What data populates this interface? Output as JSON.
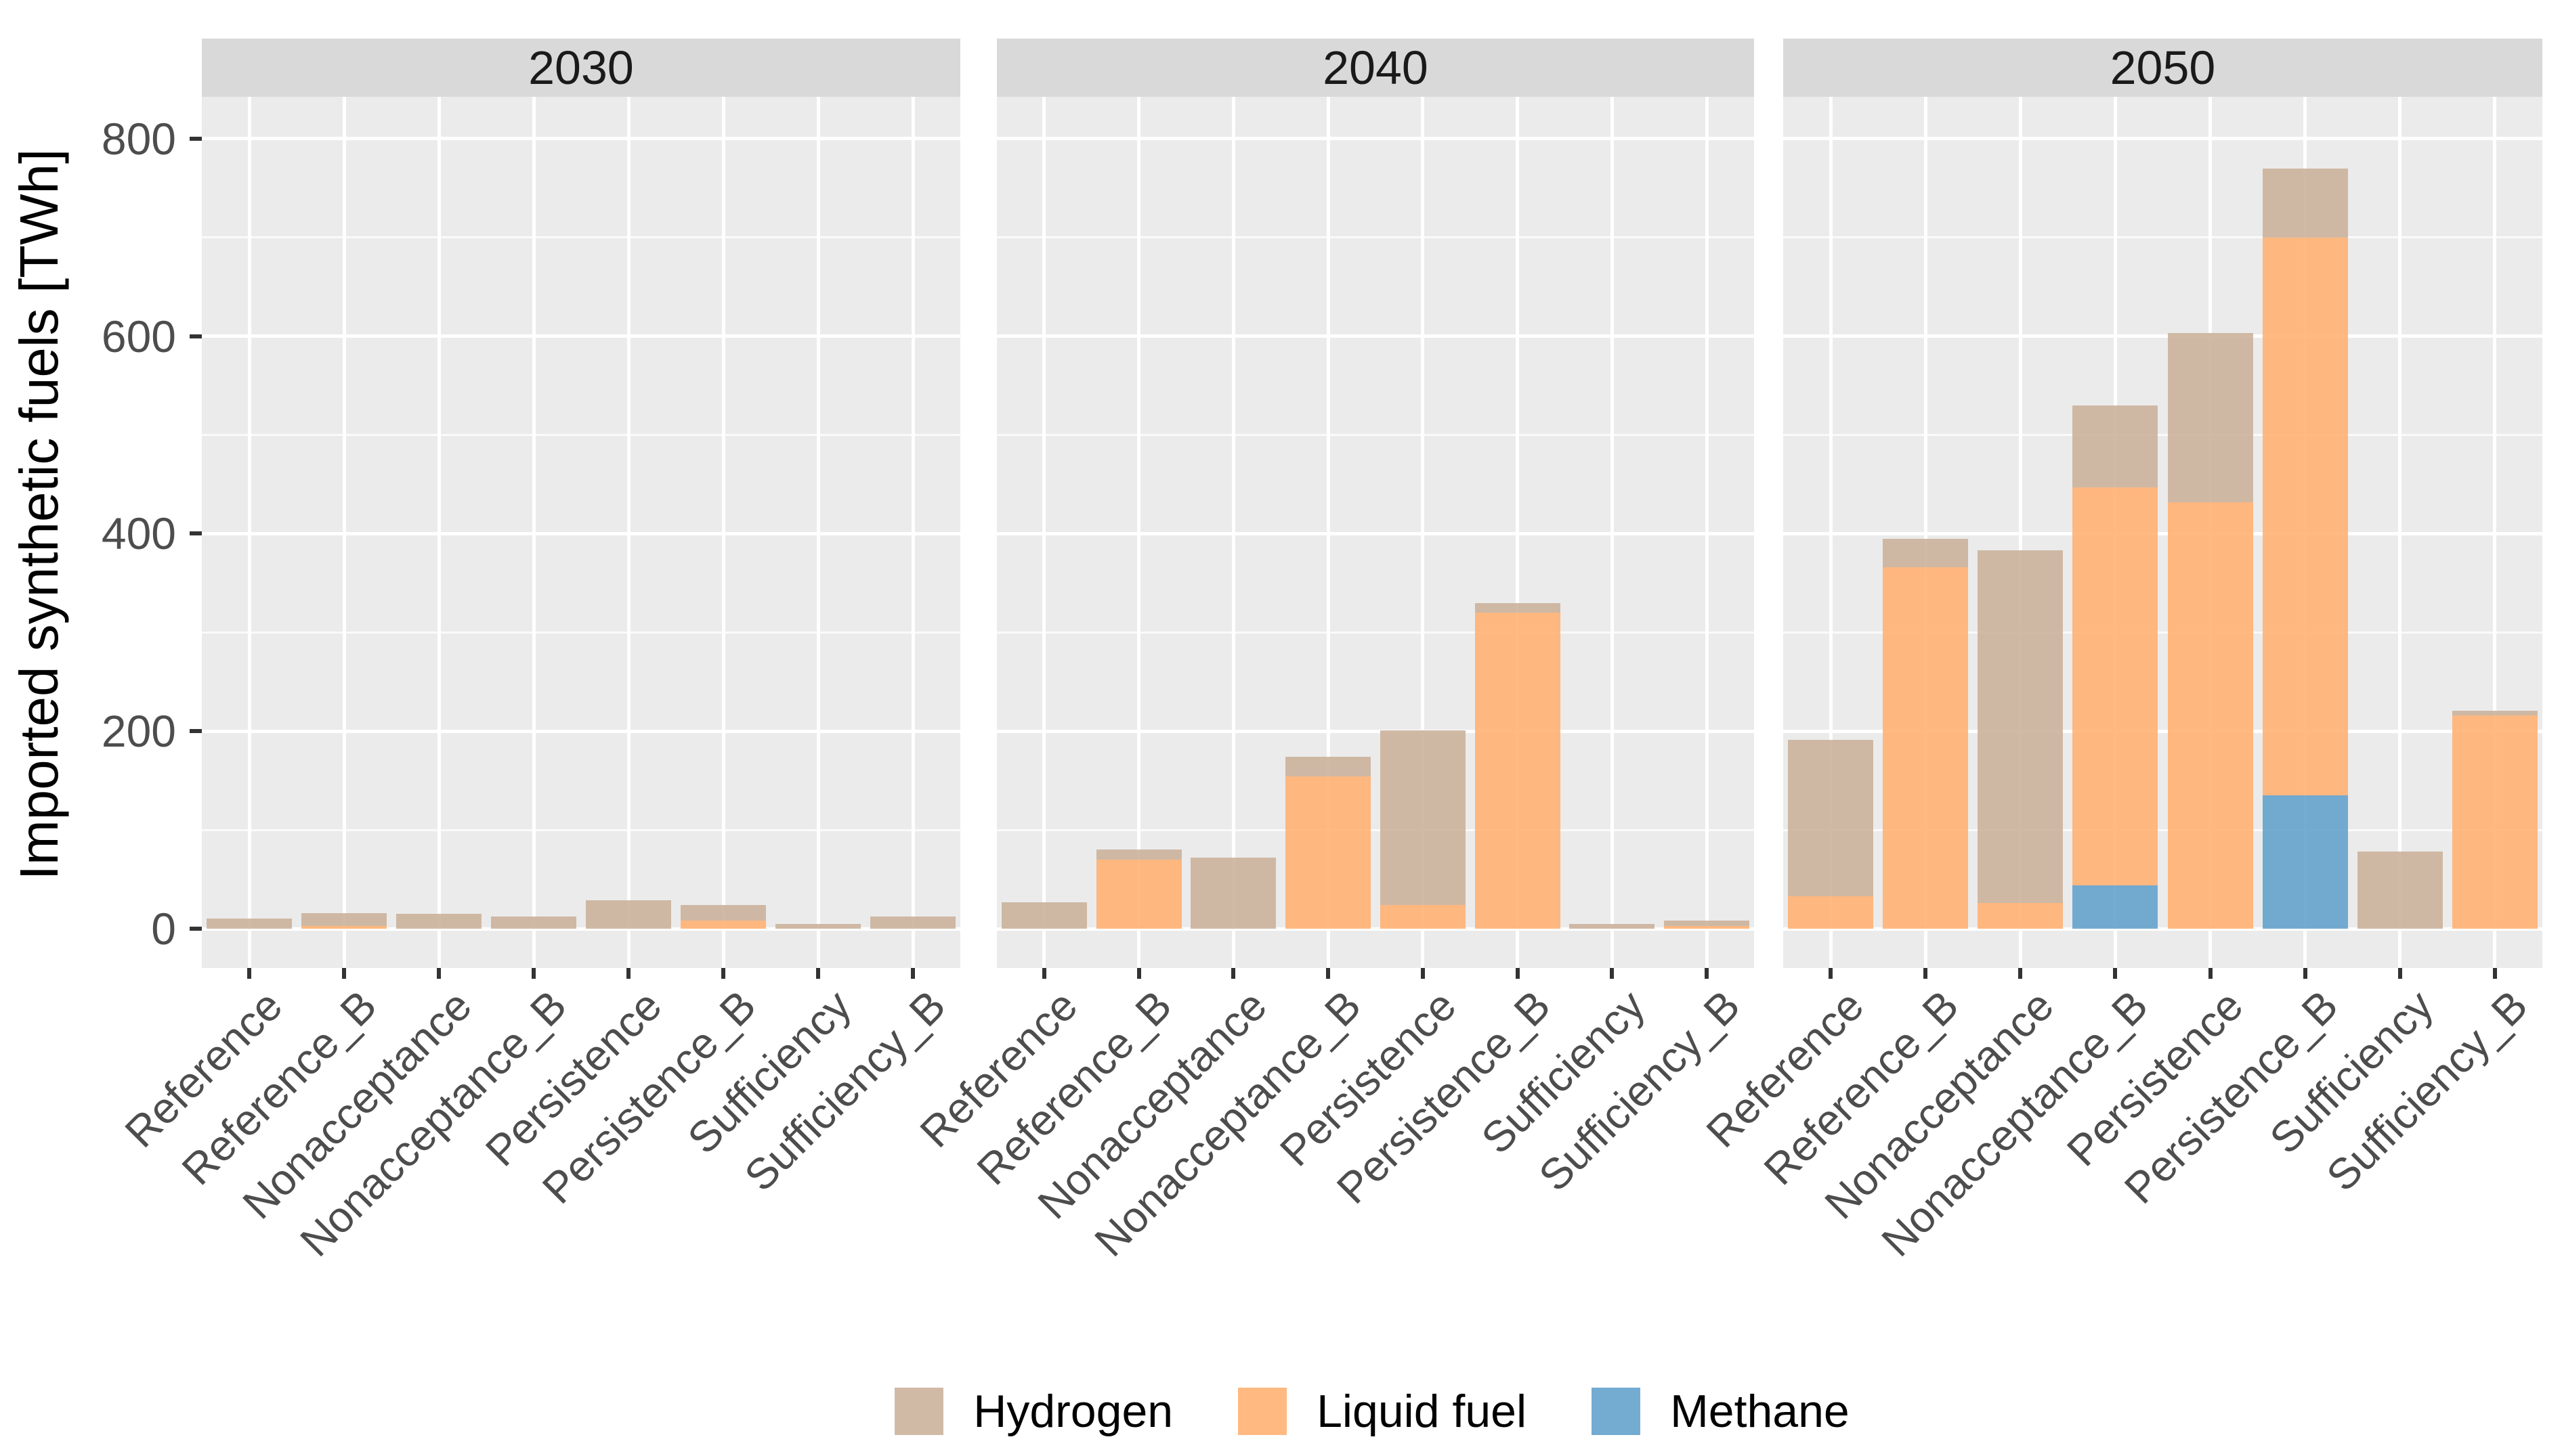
{
  "chart_data": {
    "type": "bar",
    "stacked": true,
    "ylabel": "Imported synthetic fuels [TWh]",
    "ylim": [
      0,
      800
    ],
    "yticks": [
      "0",
      "200",
      "400",
      "600",
      "800"
    ],
    "grid": "on",
    "legend_position": "bottom",
    "categories": [
      "Reference",
      "Reference_B",
      "Nonacceptance",
      "Nonacceptance_B",
      "Persistence",
      "Persistence_B",
      "Sufficiency",
      "Sufficiency_B"
    ],
    "stack_order": [
      "Methane",
      "Liquid fuel",
      "Hydrogen"
    ],
    "facets": [
      {
        "label": "2030",
        "series": [
          {
            "name": "Hydrogen",
            "values": [
              10,
              13,
              15,
              12,
              29,
              16,
              5,
              12
            ]
          },
          {
            "name": "Liquid fuel",
            "values": [
              0,
              3,
              0,
              0,
              0,
              8,
              0,
              0
            ]
          },
          {
            "name": "Methane",
            "values": [
              0,
              0,
              0,
              0,
              0,
              0,
              0,
              0
            ]
          }
        ]
      },
      {
        "label": "2040",
        "series": [
          {
            "name": "Hydrogen",
            "values": [
              27,
              10,
              72,
              20,
              177,
              10,
              5,
              5
            ]
          },
          {
            "name": "Liquid fuel",
            "values": [
              0,
              70,
              0,
              154,
              24,
              320,
              0,
              3
            ]
          },
          {
            "name": "Methane",
            "values": [
              0,
              0,
              0,
              0,
              0,
              0,
              0,
              0
            ]
          }
        ]
      },
      {
        "label": "2050",
        "series": [
          {
            "name": "Hydrogen",
            "values": [
              158,
              29,
              357,
              83,
              171,
              70,
              78,
              5
            ]
          },
          {
            "name": "Liquid fuel",
            "values": [
              33,
              366,
              26,
              403,
              432,
              565,
              0,
              216
            ]
          },
          {
            "name": "Methane",
            "values": [
              0,
              0,
              0,
              44,
              0,
              135,
              0,
              0
            ]
          }
        ]
      }
    ],
    "legend": [
      {
        "label": "Hydrogen",
        "color": "rgba(201,176,154,0.88)"
      },
      {
        "label": "Liquid fuel",
        "color": "rgba(255,175,112,0.88)"
      },
      {
        "label": "Methane",
        "color": "rgba(97,159,203,0.88)"
      }
    ],
    "colors": {
      "panel_background": "#ebebeb",
      "strip_background": "#d9d9d9",
      "gridline": "#ffffff",
      "axis_text": "#4d4d4d",
      "strip_text": "#1a1a1a",
      "axis_title": "#000000",
      "tick_mark": "#333333"
    }
  }
}
